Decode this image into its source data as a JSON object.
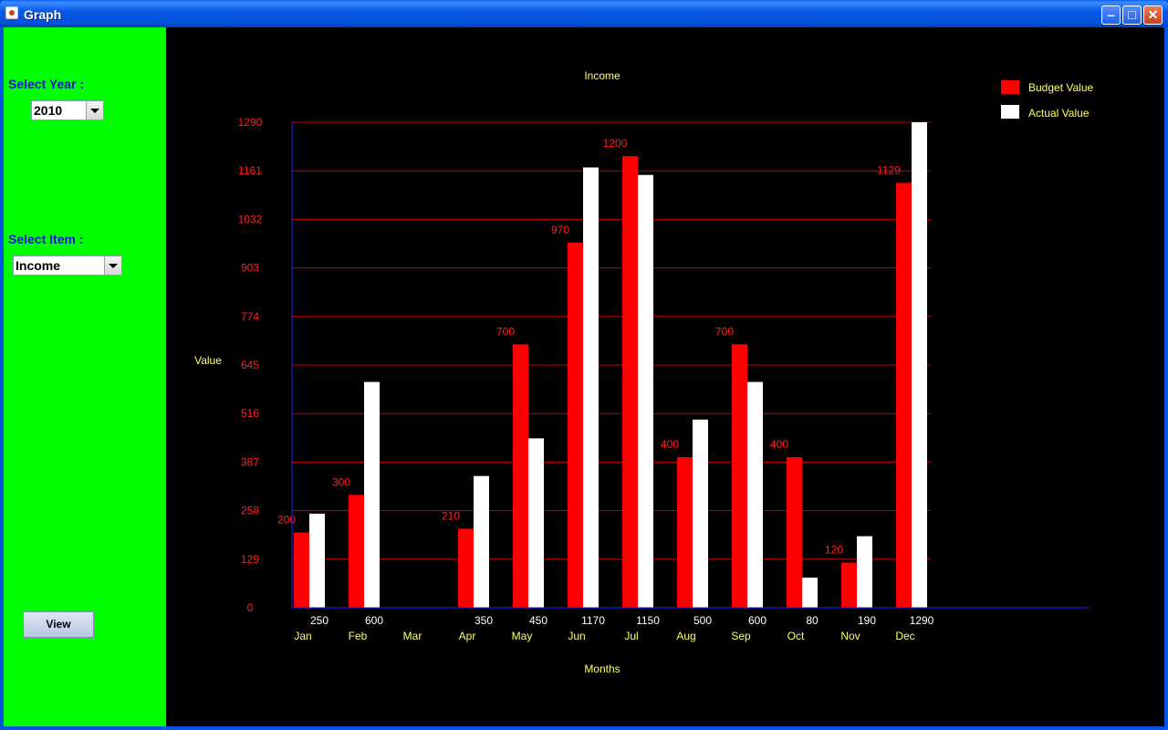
{
  "window": {
    "title": "Graph"
  },
  "sidebar": {
    "year_label": "Select Year :",
    "year_value": "2010",
    "item_label": "Select Item :",
    "item_value": "Income",
    "view_button": "View"
  },
  "colors": {
    "budget": "#ff0000",
    "actual": "#ffffff",
    "grid": "#cc0000",
    "axis_text": "#ffff66",
    "tick_text": "#ff2020",
    "sidebar_bg": "#00ff00"
  },
  "chart_data": {
    "type": "bar",
    "title": "Income",
    "xlabel": "Months",
    "ylabel": "Value",
    "categories": [
      "Jan",
      "Feb",
      "Mar",
      "Apr",
      "May",
      "Jun",
      "Jul",
      "Aug",
      "Sep",
      "Oct",
      "Nov",
      "Dec"
    ],
    "yticks": [
      0,
      129,
      258,
      387,
      516,
      645,
      774,
      903,
      1032,
      1161,
      1290
    ],
    "ylim": [
      0,
      1290
    ],
    "grid": true,
    "legend_position": "top-right",
    "series": [
      {
        "name": "Budget Value",
        "values": [
          200,
          300,
          0,
          210,
          700,
          970,
          1200,
          400,
          700,
          400,
          120,
          1129
        ],
        "labels": [
          "200",
          "300",
          "",
          "210",
          "700",
          "970",
          "1200",
          "400",
          "700",
          "400",
          "120",
          "1129"
        ]
      },
      {
        "name": "Actual Value",
        "values": [
          250,
          600,
          0,
          350,
          450,
          1170,
          1150,
          500,
          600,
          80,
          190,
          1290
        ],
        "labels": [
          "250",
          "600",
          "",
          "350",
          "450",
          "1170",
          "1150",
          "500",
          "600",
          "80",
          "190",
          "1290"
        ]
      }
    ]
  }
}
